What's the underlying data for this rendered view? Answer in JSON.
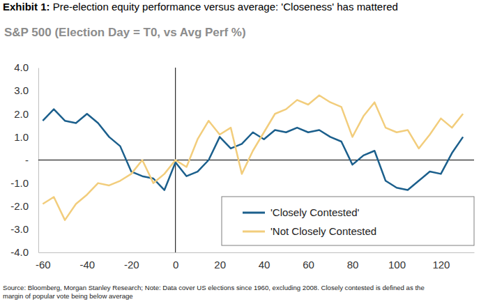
{
  "chart_data": {
    "type": "line",
    "title": "Exhibit 1:  Pre-election equity performance versus average: 'Closeness' has mattered",
    "subtitle": "S&P 500 (Election Day = T0, vs Avg Perf %)",
    "notes": [
      "Source: Bloomberg, Morgan Stanley Research; Note: Data cover US elections since 1960, excluding 2008. Closely contested is defined as the",
      "margin of popular vote being below average"
    ],
    "x": [
      -60,
      -55,
      -50,
      -45,
      -40,
      -35,
      -30,
      -25,
      -20,
      -15,
      -10,
      -5,
      0,
      5,
      10,
      15,
      20,
      25,
      30,
      35,
      40,
      45,
      50,
      55,
      60,
      65,
      70,
      75,
      80,
      85,
      90,
      95,
      100,
      105,
      110,
      115,
      120,
      125,
      130
    ],
    "series": [
      {
        "name": "'Closely Contested'",
        "color": "#1b5f8c",
        "values": [
          1.7,
          2.2,
          1.7,
          1.6,
          2.0,
          1.6,
          1.0,
          0.6,
          -0.5,
          -0.7,
          -0.8,
          -1.3,
          -0.1,
          -0.7,
          -0.5,
          0.0,
          1.0,
          0.5,
          0.7,
          1.2,
          0.9,
          1.3,
          1.2,
          1.4,
          1.2,
          1.3,
          1.0,
          0.8,
          -0.2,
          0.2,
          0.4,
          -0.9,
          -1.2,
          -1.3,
          -0.9,
          -0.5,
          -0.6,
          0.3,
          1.0
        ]
      },
      {
        "name": "'Not Closely Contested",
        "color": "#f2cd7c",
        "values": [
          -1.9,
          -1.6,
          -2.6,
          -1.9,
          -1.5,
          -1.0,
          -1.1,
          -0.9,
          -0.6,
          0.0,
          -1.0,
          -0.6,
          0.0,
          -0.3,
          0.9,
          1.7,
          1.1,
          1.4,
          -0.6,
          0.4,
          1.2,
          2.0,
          2.2,
          2.6,
          2.4,
          2.8,
          2.5,
          2.3,
          1.0,
          1.9,
          2.5,
          1.4,
          1.2,
          1.3,
          0.5,
          1.1,
          1.8,
          1.4,
          2.0
        ]
      }
    ],
    "xlim": [
      -62,
      135
    ],
    "xticks": [
      -60,
      -40,
      -20,
      0,
      20,
      40,
      60,
      80,
      100,
      120
    ],
    "ylim": [
      -4,
      4
    ],
    "yticks": [
      {
        "value": 4,
        "label": "4.0"
      },
      {
        "value": 3,
        "label": "3.0"
      },
      {
        "value": 2,
        "label": "2.0"
      },
      {
        "value": 1,
        "label": "1.0"
      },
      {
        "value": 0,
        "label": "-"
      },
      {
        "value": -1,
        "label": "-1.0"
      },
      {
        "value": -2,
        "label": "-2.0"
      },
      {
        "value": -3,
        "label": "-3.0"
      },
      {
        "value": -4,
        "label": "-4.0"
      }
    ],
    "grid": false,
    "legend": "lower right"
  }
}
